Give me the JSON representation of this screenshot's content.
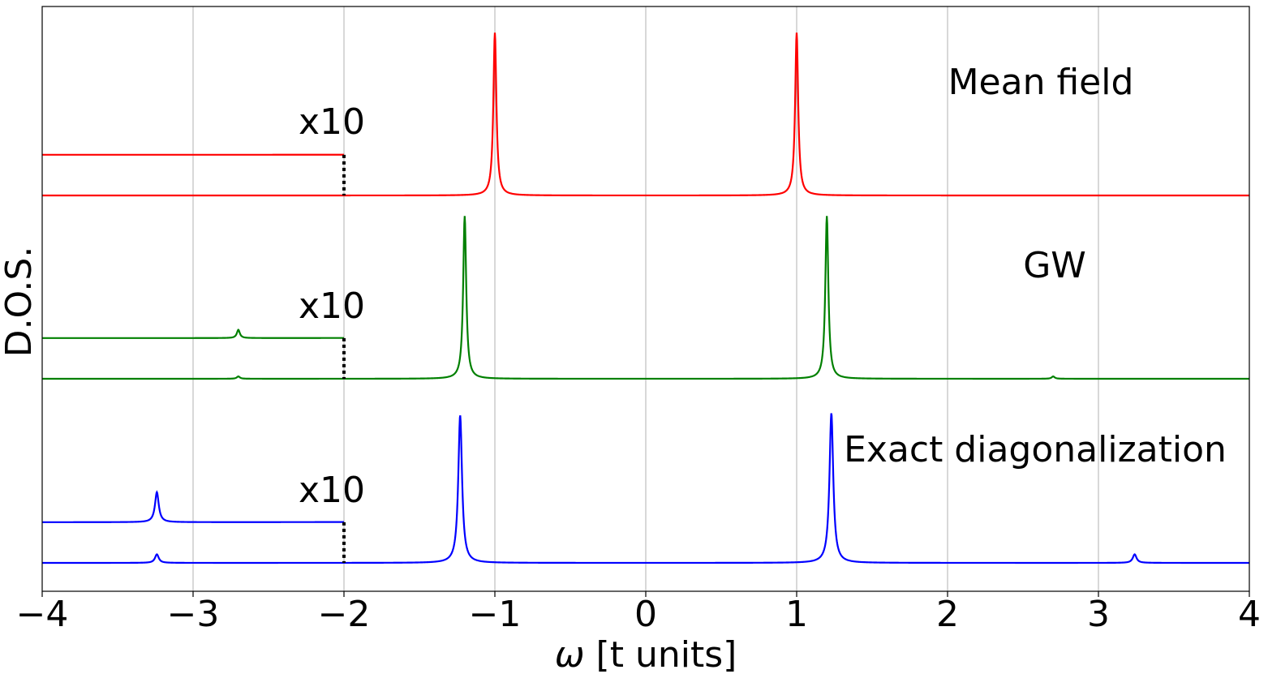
{
  "chart_data": {
    "type": "line",
    "xlabel": "ω [t units]",
    "ylabel": "D.O.S.",
    "xlim": [
      -4,
      4
    ],
    "xticks": [
      -4,
      -3,
      -2,
      -1,
      0,
      1,
      2,
      3,
      4
    ],
    "xtick_labels": [
      "−4",
      "−3",
      "−2",
      "−1",
      "0",
      "1",
      "2",
      "3",
      "4"
    ],
    "grid": "vertical",
    "panels": [
      {
        "name": "Mean field",
        "label": "Mean field",
        "color": "#ff0000",
        "baseline": 0,
        "offset_x10": 0.38,
        "width": 0.012,
        "peaks": [
          {
            "x": -1.0,
            "height": 1.52
          },
          {
            "x": 1.0,
            "height": 1.52
          }
        ],
        "magnified_label": "x10",
        "magnified_range": [
          -4,
          -2
        ]
      },
      {
        "name": "GW",
        "label": "GW",
        "color": "#008000",
        "baseline": 0,
        "offset_x10": 0.38,
        "width": 0.012,
        "peaks": [
          {
            "x": -2.7,
            "height": 0.022
          },
          {
            "x": -1.2,
            "height": 1.52
          },
          {
            "x": 1.2,
            "height": 1.52
          },
          {
            "x": 2.7,
            "height": 0.022
          }
        ],
        "magnified_label": "x10",
        "magnified_range": [
          -4,
          -2
        ]
      },
      {
        "name": "Exact diagonalization",
        "label": "Exact diagonalization",
        "color": "#0000ff",
        "baseline": 0,
        "offset_x10": 0.38,
        "width": 0.015,
        "peaks": [
          {
            "x": -3.24,
            "height": 0.08
          },
          {
            "x": -1.23,
            "height": 1.38
          },
          {
            "x": 1.23,
            "height": 1.4
          },
          {
            "x": 3.24,
            "height": 0.08
          }
        ],
        "magnified_label": "x10",
        "magnified_range": [
          -4,
          -2
        ]
      }
    ],
    "magnification": 10
  }
}
